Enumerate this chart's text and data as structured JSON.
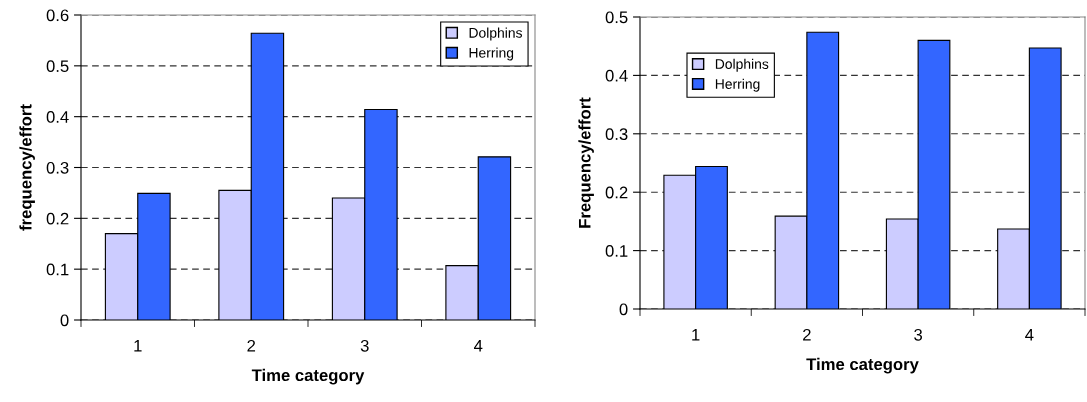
{
  "chart_data": [
    {
      "type": "bar",
      "categories": [
        "1",
        "2",
        "3",
        "4"
      ],
      "xlabel": "Time category",
      "ylabel": "frequency/effort",
      "ylim": [
        0,
        0.6
      ],
      "yticks": [
        0,
        0.1,
        0.2,
        0.3,
        0.4,
        0.5,
        0.6
      ],
      "grid": "y",
      "legend": "top right",
      "series": [
        {
          "name": "Dolphins",
          "color": "#ccccff",
          "values": [
            0.17,
            0.255,
            0.24,
            0.107
          ]
        },
        {
          "name": "Herring",
          "color": "#3366ff",
          "values": [
            0.249,
            0.564,
            0.414,
            0.321
          ]
        }
      ]
    },
    {
      "type": "bar",
      "categories": [
        "1",
        "2",
        "3",
        "4"
      ],
      "xlabel": "Time category",
      "ylabel": "Frequency/effort",
      "ylim": [
        0,
        0.5
      ],
      "yticks": [
        0,
        0.1,
        0.2,
        0.3,
        0.4,
        0.5
      ],
      "grid": "y",
      "legend": "top left",
      "series": [
        {
          "name": "Dolphins",
          "color": "#ccccff",
          "values": [
            0.229,
            0.159,
            0.154,
            0.137
          ]
        },
        {
          "name": "Herring",
          "color": "#3366ff",
          "values": [
            0.244,
            0.474,
            0.46,
            0.447
          ]
        }
      ]
    }
  ]
}
